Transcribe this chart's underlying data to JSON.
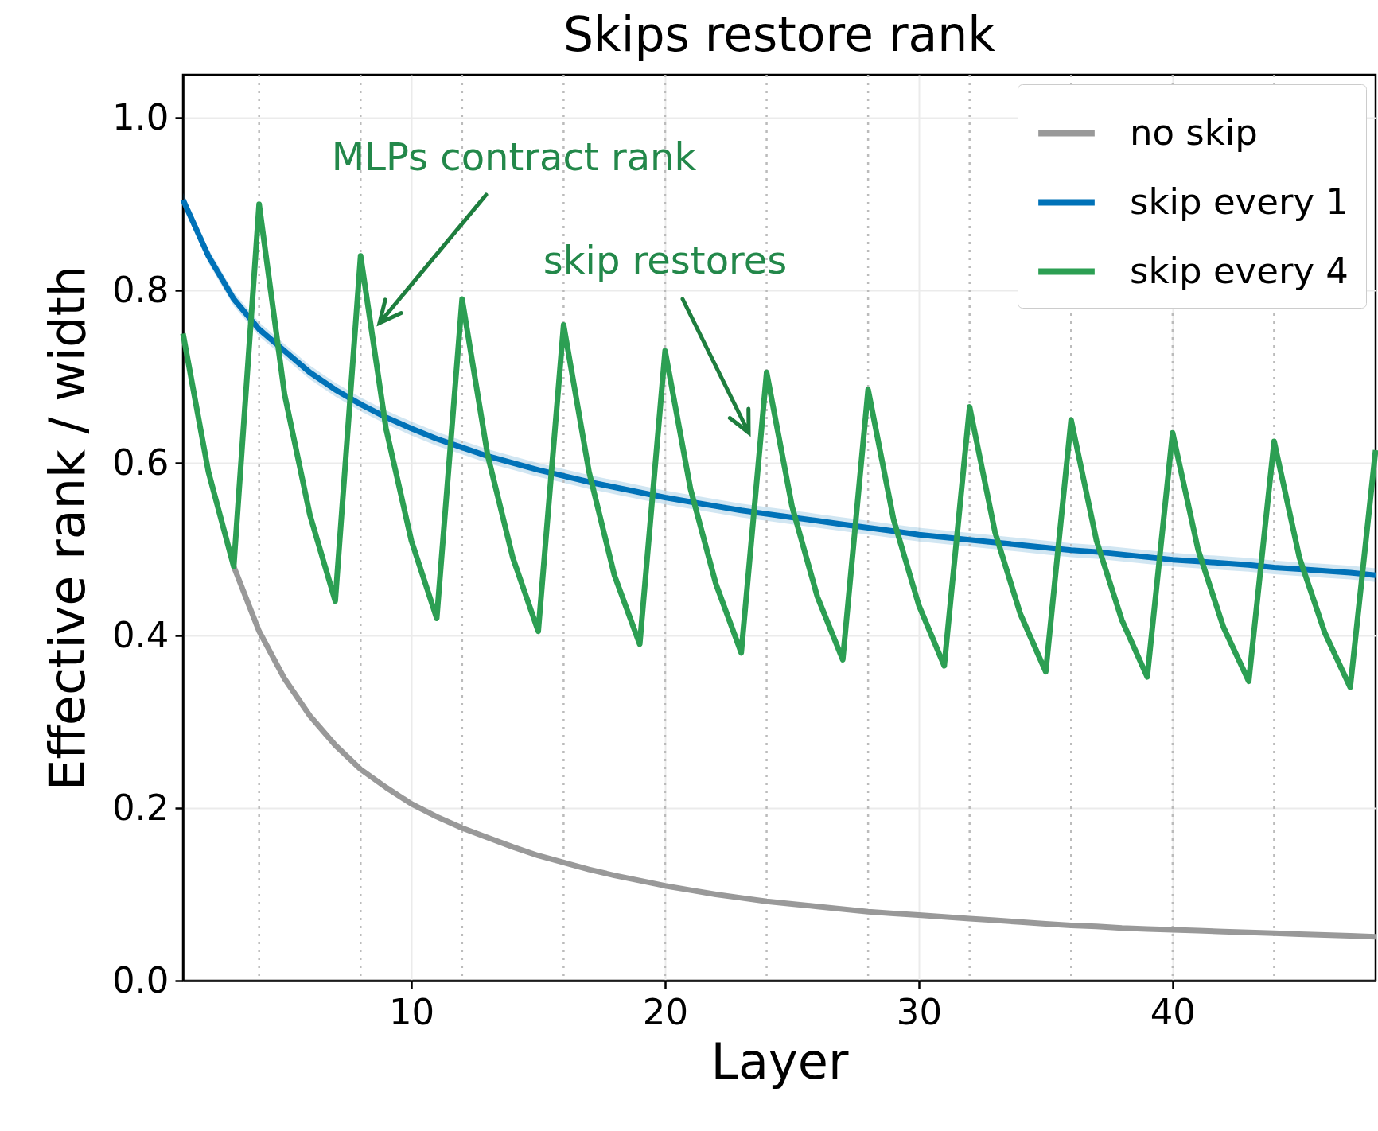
{
  "chart_data": {
    "type": "line",
    "title": "Skips restore rank",
    "xlabel": "Layer",
    "ylabel": "Effective rank / width",
    "x": [
      1,
      2,
      3,
      4,
      5,
      6,
      7,
      8,
      9,
      10,
      11,
      12,
      13,
      14,
      15,
      16,
      17,
      18,
      19,
      20,
      21,
      22,
      23,
      24,
      25,
      26,
      27,
      28,
      29,
      30,
      31,
      32,
      33,
      34,
      35,
      36,
      37,
      38,
      39,
      40,
      41,
      42,
      43,
      44,
      45,
      46,
      47,
      48
    ],
    "series": [
      {
        "name": "no skip",
        "color": "#999999",
        "values": [
          null,
          null,
          0.48,
          0.405,
          0.35,
          0.307,
          0.273,
          0.245,
          0.224,
          0.205,
          0.19,
          0.177,
          0.166,
          0.155,
          0.145,
          0.137,
          0.129,
          0.122,
          0.116,
          0.11,
          0.105,
          0.1,
          0.096,
          0.092,
          0.089,
          0.086,
          0.083,
          0.08,
          0.078,
          0.076,
          0.074,
          0.072,
          0.07,
          0.068,
          0.066,
          0.064,
          0.063,
          0.061,
          0.06,
          0.059,
          0.058,
          0.057,
          0.056,
          0.055,
          0.054,
          0.053,
          0.052,
          0.051
        ]
      },
      {
        "name": "skip every 1",
        "color": "#0072b8",
        "values": [
          0.905,
          0.84,
          0.79,
          0.755,
          0.73,
          0.705,
          0.685,
          0.668,
          0.653,
          0.64,
          0.628,
          0.618,
          0.608,
          0.6,
          0.592,
          0.585,
          0.578,
          0.572,
          0.566,
          0.56,
          0.555,
          0.55,
          0.545,
          0.541,
          0.537,
          0.533,
          0.529,
          0.525,
          0.521,
          0.517,
          0.514,
          0.511,
          0.508,
          0.505,
          0.502,
          0.499,
          0.497,
          0.494,
          0.491,
          0.488,
          0.486,
          0.484,
          0.482,
          0.479,
          0.477,
          0.475,
          0.473,
          0.47
        ],
        "lower": [
          0.897,
          0.832,
          0.782,
          0.747,
          0.722,
          0.697,
          0.677,
          0.66,
          0.645,
          0.632,
          0.62,
          0.61,
          0.6,
          0.592,
          0.584,
          0.577,
          0.57,
          0.564,
          0.558,
          0.552,
          0.547,
          0.542,
          0.537,
          0.533,
          0.529,
          0.525,
          0.521,
          0.517,
          0.513,
          0.509,
          0.506,
          0.503,
          0.5,
          0.497,
          0.494,
          0.491,
          0.489,
          0.486,
          0.483,
          0.48,
          0.478,
          0.476,
          0.474,
          0.471,
          0.469,
          0.467,
          0.465,
          0.462
        ],
        "upper": [
          0.913,
          0.848,
          0.798,
          0.763,
          0.738,
          0.713,
          0.693,
          0.676,
          0.661,
          0.648,
          0.636,
          0.626,
          0.616,
          0.608,
          0.6,
          0.593,
          0.586,
          0.58,
          0.574,
          0.568,
          0.563,
          0.558,
          0.553,
          0.549,
          0.545,
          0.541,
          0.537,
          0.533,
          0.529,
          0.525,
          0.522,
          0.519,
          0.516,
          0.513,
          0.51,
          0.507,
          0.505,
          0.502,
          0.499,
          0.496,
          0.494,
          0.492,
          0.49,
          0.487,
          0.485,
          0.483,
          0.481,
          0.478
        ]
      },
      {
        "name": "skip every 4",
        "color": "#2c9f53",
        "values": [
          0.75,
          0.59,
          0.48,
          0.9,
          0.68,
          0.54,
          0.44,
          0.84,
          0.64,
          0.51,
          0.42,
          0.79,
          0.61,
          0.49,
          0.405,
          0.76,
          0.59,
          0.47,
          0.39,
          0.73,
          0.57,
          0.46,
          0.38,
          0.705,
          0.55,
          0.445,
          0.372,
          0.685,
          0.535,
          0.435,
          0.365,
          0.665,
          0.52,
          0.425,
          0.358,
          0.65,
          0.51,
          0.418,
          0.352,
          0.635,
          0.5,
          0.41,
          0.347,
          0.625,
          0.49,
          0.403,
          0.34,
          0.615
        ]
      }
    ],
    "xlim": [
      1,
      48
    ],
    "xticks": [
      10,
      20,
      30,
      40
    ],
    "ylim": [
      0,
      1.05
    ],
    "yticks": [
      {
        "value": 0,
        "label": "0.0"
      },
      {
        "value": 0.2,
        "label": "0.2"
      },
      {
        "value": 0.4,
        "label": "0.4"
      },
      {
        "value": 0.6,
        "label": "0.6"
      },
      {
        "value": 0.8,
        "label": "0.8"
      },
      {
        "value": 1,
        "label": "1.0"
      }
    ],
    "grid": true,
    "legend": "top right",
    "ref_lines": [
      {
        "axis": "x",
        "value": 4,
        "color": "#bbbbbb",
        "line_style": "dotted"
      },
      {
        "axis": "x",
        "value": 8,
        "color": "#bbbbbb",
        "line_style": "dotted"
      },
      {
        "axis": "x",
        "value": 12,
        "color": "#bbbbbb",
        "line_style": "dotted"
      },
      {
        "axis": "x",
        "value": 16,
        "color": "#bbbbbb",
        "line_style": "dotted"
      },
      {
        "axis": "x",
        "value": 20,
        "color": "#bbbbbb",
        "line_style": "dotted"
      },
      {
        "axis": "x",
        "value": 24,
        "color": "#bbbbbb",
        "line_style": "dotted"
      },
      {
        "axis": "x",
        "value": 28,
        "color": "#bbbbbb",
        "line_style": "dotted"
      },
      {
        "axis": "x",
        "value": 32,
        "color": "#bbbbbb",
        "line_style": "dotted"
      },
      {
        "axis": "x",
        "value": 36,
        "color": "#bbbbbb",
        "line_style": "dotted"
      },
      {
        "axis": "x",
        "value": 40,
        "color": "#bbbbbb",
        "line_style": "dotted"
      },
      {
        "axis": "x",
        "value": 44,
        "color": "#bbbbbb",
        "line_style": "dotted"
      }
    ],
    "annotations": [
      "MLPs contract rank",
      "skip restores"
    ]
  }
}
